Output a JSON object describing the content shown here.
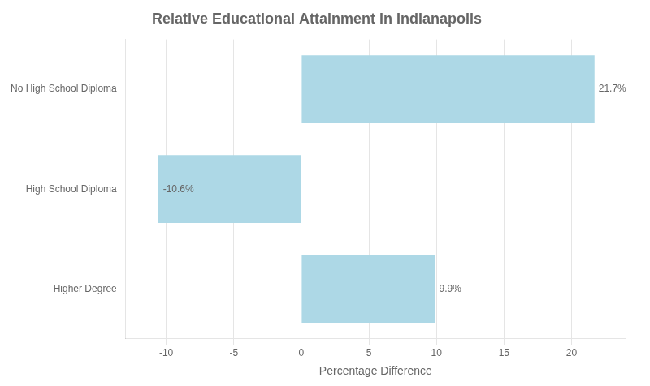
{
  "chart_data": {
    "type": "bar",
    "orientation": "horizontal",
    "title": "Relative Educational Attainment in Indianapolis",
    "xlabel": "Percentage Difference",
    "categories": [
      "No High School Diploma",
      "High School Diploma",
      "Higher Degree"
    ],
    "values": [
      21.7,
      -10.6,
      9.9
    ],
    "value_labels": [
      "21.7%",
      "-10.6%",
      "9.9%"
    ],
    "data_labels": true,
    "color": "#add8e6",
    "xlim": [
      -13,
      24
    ],
    "xticks": [
      -10,
      -5,
      0,
      5,
      10,
      15,
      20
    ],
    "grid": true
  }
}
